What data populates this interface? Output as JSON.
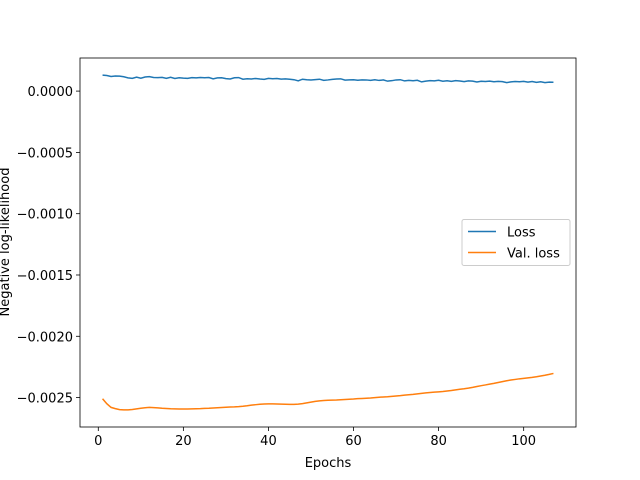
{
  "chart_data": {
    "type": "line",
    "xlabel": "Epochs",
    "ylabel": "Negative log-likelihood",
    "x": [
      1,
      2,
      3,
      4,
      5,
      6,
      7,
      8,
      9,
      10,
      11,
      12,
      13,
      14,
      15,
      16,
      17,
      18,
      19,
      20,
      21,
      22,
      23,
      24,
      25,
      26,
      27,
      28,
      29,
      30,
      31,
      32,
      33,
      34,
      35,
      36,
      37,
      38,
      39,
      40,
      41,
      42,
      43,
      44,
      45,
      46,
      47,
      48,
      49,
      50,
      51,
      52,
      53,
      54,
      55,
      56,
      57,
      58,
      59,
      60,
      61,
      62,
      63,
      64,
      65,
      66,
      67,
      68,
      69,
      70,
      71,
      72,
      73,
      74,
      75,
      76,
      77,
      78,
      79,
      80,
      81,
      82,
      83,
      84,
      85,
      86,
      87,
      88,
      89,
      90,
      91,
      92,
      93,
      94,
      95,
      96,
      97,
      98,
      99,
      100,
      101,
      102,
      103,
      104,
      105,
      106,
      107
    ],
    "series": [
      {
        "name": "Loss",
        "color": "#1f77b4",
        "values": [
          0.00013,
          0.000127,
          0.000119,
          0.000123,
          0.000122,
          0.000117,
          0.000108,
          0.000104,
          0.000114,
          0.000105,
          0.000115,
          0.000118,
          0.000111,
          0.00011,
          0.000112,
          0.000104,
          0.000113,
          0.000103,
          0.000109,
          0.000106,
          0.000104,
          0.00011,
          0.000108,
          0.000111,
          0.000109,
          0.000111,
          0.0001,
          0.000108,
          0.000109,
          0.000102,
          9.9e-05,
          0.000109,
          0.00011,
          9.7e-05,
          0.000101,
          9.9e-05,
          0.000103,
          9.9e-05,
          9.6e-05,
          0.000104,
          0.000101,
          0.000103,
          9.8e-05,
          0.0001,
          9.7e-05,
          9.3e-05,
          8.4e-05,
          9.7e-05,
          9.3e-05,
          9.1e-05,
          9.4e-05,
          9.7e-05,
          8.8e-05,
          9.1e-05,
          9.6e-05,
          9.9e-05,
          0.0001,
          9e-05,
          9.2e-05,
          9.3e-05,
          8.9e-05,
          9.2e-05,
          9.1e-05,
          8.8e-05,
          9.3e-05,
          8.7e-05,
          9.1e-05,
          8.1e-05,
          8.5e-05,
          9.1e-05,
          9.3e-05,
          8.3e-05,
          8.7e-05,
          8.4e-05,
          8.8e-05,
          7.5e-05,
          8.1e-05,
          8.5e-05,
          8.3e-05,
          8.8e-05,
          8e-05,
          8.4e-05,
          7.9e-05,
          8.5e-05,
          8.2e-05,
          7.7e-05,
          8.3e-05,
          8.1e-05,
          7.4e-05,
          8e-05,
          7.8e-05,
          8.1e-05,
          7.6e-05,
          7.9e-05,
          7.7e-05,
          6.9e-05,
          7.5e-05,
          7.8e-05,
          7.6e-05,
          7.9e-05,
          7.3e-05,
          7.8e-05,
          7.1e-05,
          7.6e-05,
          6.9e-05,
          7.3e-05,
          7.2e-05
        ]
      },
      {
        "name": "Val. loss",
        "color": "#ff7f0e",
        "values": [
          -0.00251,
          -0.00255,
          -0.00258,
          -0.00259,
          -0.002598,
          -0.0026,
          -0.0026,
          -0.002597,
          -0.002592,
          -0.002587,
          -0.002583,
          -0.00258,
          -0.002582,
          -0.002584,
          -0.002587,
          -0.002589,
          -0.002591,
          -0.002592,
          -0.002593,
          -0.002593,
          -0.002593,
          -0.002592,
          -0.002591,
          -0.00259,
          -0.002588,
          -0.002587,
          -0.002585,
          -0.002583,
          -0.002581,
          -0.002579,
          -0.002577,
          -0.002576,
          -0.002574,
          -0.002571,
          -0.002567,
          -0.002562,
          -0.002558,
          -0.002554,
          -0.002552,
          -0.002551,
          -0.002551,
          -0.002552,
          -0.002553,
          -0.002554,
          -0.002555,
          -0.002555,
          -0.002553,
          -0.002549,
          -0.002543,
          -0.002537,
          -0.002531,
          -0.002527,
          -0.002524,
          -0.002522,
          -0.002521,
          -0.00252,
          -0.002518,
          -0.002516,
          -0.002514,
          -0.002512,
          -0.002509,
          -0.002507,
          -0.002505,
          -0.002503,
          -0.0025,
          -0.002497,
          -0.002495,
          -0.002493,
          -0.00249,
          -0.002487,
          -0.002484,
          -0.00248,
          -0.002477,
          -0.002474,
          -0.00247,
          -0.002466,
          -0.002462,
          -0.002459,
          -0.002456,
          -0.002453,
          -0.00245,
          -0.002446,
          -0.002442,
          -0.002437,
          -0.002432,
          -0.002428,
          -0.002423,
          -0.002417,
          -0.00241,
          -0.002403,
          -0.002397,
          -0.00239,
          -0.002384,
          -0.002377,
          -0.00237,
          -0.002363,
          -0.002357,
          -0.002352,
          -0.002347,
          -0.002343,
          -0.002339,
          -0.002335,
          -0.00233,
          -0.002324,
          -0.002318,
          -0.002311,
          -0.002303
        ]
      }
    ],
    "xlim": [
      -4.3,
      112.3
    ],
    "xticks": [
      0,
      20,
      40,
      60,
      80,
      100
    ],
    "ylim": [
      -0.00274,
      0.00027
    ],
    "yticks": [
      {
        "value": 0,
        "label": "0.0000"
      },
      {
        "value": -0.0005,
        "label": "−0.0005"
      },
      {
        "value": -0.001,
        "label": "−0.0010"
      },
      {
        "value": -0.0015,
        "label": "−0.0015"
      },
      {
        "value": -0.002,
        "label": "−0.0020"
      },
      {
        "value": -0.0025,
        "label": "−0.0025"
      }
    ],
    "legend": "center right",
    "grid": false
  }
}
